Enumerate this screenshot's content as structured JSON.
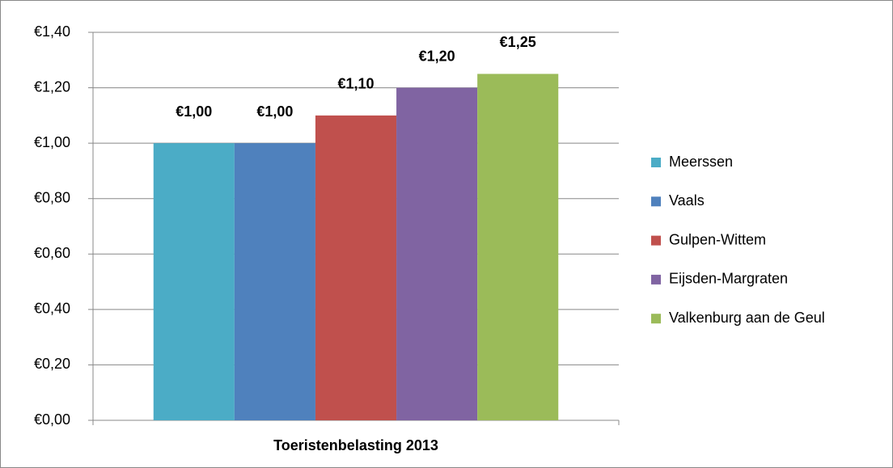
{
  "chart_data": {
    "type": "bar",
    "categories": [
      "Toeristenbelasting 2013"
    ],
    "series": [
      {
        "name": "Meerssen",
        "color": "#4bacc6",
        "values": [
          1.0
        ],
        "value_labels": [
          "€1,00"
        ]
      },
      {
        "name": "Vaals",
        "color": "#4f81bd",
        "values": [
          1.0
        ],
        "value_labels": [
          "€1,00"
        ]
      },
      {
        "name": "Gulpen-Wittem",
        "color": "#c0504d",
        "values": [
          1.1
        ],
        "value_labels": [
          "€1,10"
        ]
      },
      {
        "name": "Eijsden-Margraten",
        "color": "#8064a2",
        "values": [
          1.2
        ],
        "value_labels": [
          "€1,20"
        ]
      },
      {
        "name": "Valkenburg aan de Geul",
        "color": "#9bbb59",
        "values": [
          1.25
        ],
        "value_labels": [
          "€1,25"
        ]
      }
    ],
    "ylim": [
      0,
      1.4
    ],
    "yticks": [
      {
        "value": 0,
        "label": "€0,00"
      },
      {
        "value": 0.2,
        "label": "€0,20"
      },
      {
        "value": 0.4,
        "label": "€0,40"
      },
      {
        "value": 0.6,
        "label": "€0,60"
      },
      {
        "value": 0.8,
        "label": "€0,80"
      },
      {
        "value": 1.0,
        "label": "€1,00"
      },
      {
        "value": 1.2,
        "label": "€1,20"
      },
      {
        "value": 1.4,
        "label": "€1,40"
      }
    ],
    "grid": true,
    "legend": "right"
  }
}
